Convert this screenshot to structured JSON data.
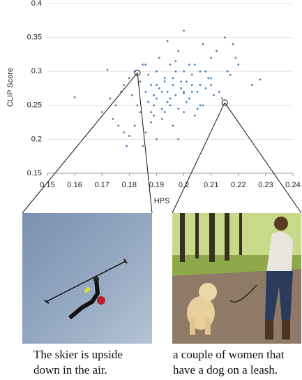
{
  "chart_data": {
    "type": "scatter",
    "xlabel": "HPS",
    "ylabel": "CLIP Score",
    "xlim": [
      0.15,
      0.24
    ],
    "xticks": [
      0.15,
      0.16,
      0.17,
      0.18,
      0.19,
      0.2,
      0.21,
      0.22,
      0.23,
      0.24
    ],
    "ylim": [
      0.15,
      0.4
    ],
    "yticks": [
      0.15,
      0.2,
      0.25,
      0.3,
      0.35,
      0.4
    ],
    "grid": true,
    "color": "#4f7db3",
    "x": [
      0.16,
      0.172,
      0.175,
      0.178,
      0.18,
      0.182,
      0.184,
      0.185,
      0.186,
      0.187,
      0.188,
      0.189,
      0.19,
      0.19,
      0.191,
      0.192,
      0.193,
      0.194,
      0.195,
      0.195,
      0.196,
      0.197,
      0.198,
      0.199,
      0.2,
      0.2,
      0.201,
      0.202,
      0.203,
      0.204,
      0.205,
      0.206,
      0.207,
      0.208,
      0.21,
      0.212,
      0.214,
      0.216,
      0.218,
      0.22,
      0.225,
      0.228,
      0.176,
      0.179,
      0.181,
      0.183,
      0.186,
      0.188,
      0.19,
      0.192,
      0.194,
      0.196,
      0.198,
      0.2,
      0.202,
      0.204,
      0.206,
      0.208,
      0.21,
      0.213,
      0.174,
      0.177,
      0.18,
      0.184,
      0.187,
      0.189,
      0.191,
      0.193,
      0.195,
      0.197,
      0.199,
      0.201,
      0.203,
      0.205,
      0.207,
      0.209,
      0.211,
      0.215,
      0.217,
      0.219,
      0.17,
      0.173,
      0.178,
      0.182,
      0.185,
      0.188,
      0.19,
      0.192,
      0.194,
      0.196,
      0.198,
      0.2,
      0.197,
      0.193,
      0.189,
      0.186,
      0.203,
      0.206,
      0.21,
      0.2
    ],
    "y": [
      0.262,
      0.302,
      0.25,
      0.21,
      0.29,
      0.22,
      0.24,
      0.31,
      0.27,
      0.255,
      0.28,
      0.235,
      0.3,
      0.26,
      0.32,
      0.245,
      0.285,
      0.27,
      0.31,
      0.25,
      0.29,
      0.265,
      0.33,
      0.275,
      0.3,
      0.24,
      0.285,
      0.26,
      0.295,
      0.31,
      0.27,
      0.28,
      0.25,
      0.3,
      0.29,
      0.33,
      0.26,
      0.3,
      0.34,
      0.31,
      0.28,
      0.288,
      0.22,
      0.19,
      0.265,
      0.25,
      0.21,
      0.225,
      0.28,
      0.23,
      0.255,
      0.22,
      0.245,
      0.268,
      0.31,
      0.235,
      0.3,
      0.275,
      0.32,
      0.27,
      0.23,
      0.27,
      0.205,
      0.285,
      0.295,
      0.265,
      0.275,
      0.24,
      0.26,
      0.3,
      0.285,
      0.255,
      0.27,
      0.245,
      0.34,
      0.29,
      0.265,
      0.35,
      0.295,
      0.32,
      0.24,
      0.26,
      0.28,
      0.3,
      0.19,
      0.24,
      0.2,
      0.27,
      0.345,
      0.28,
      0.2,
      0.36,
      0.315,
      0.29,
      0.25,
      0.31,
      0.28,
      0.25,
      0.28,
      0.27
    ],
    "highlight_x": [
      0.183,
      0.215
    ],
    "highlight_y": [
      0.298,
      0.254
    ]
  },
  "panels": [
    {
      "caption_lines": [
        "The skier is upside",
        "down in the air."
      ]
    },
    {
      "caption_lines": [
        "a couple of women that",
        "have a dog on a leash."
      ]
    }
  ]
}
